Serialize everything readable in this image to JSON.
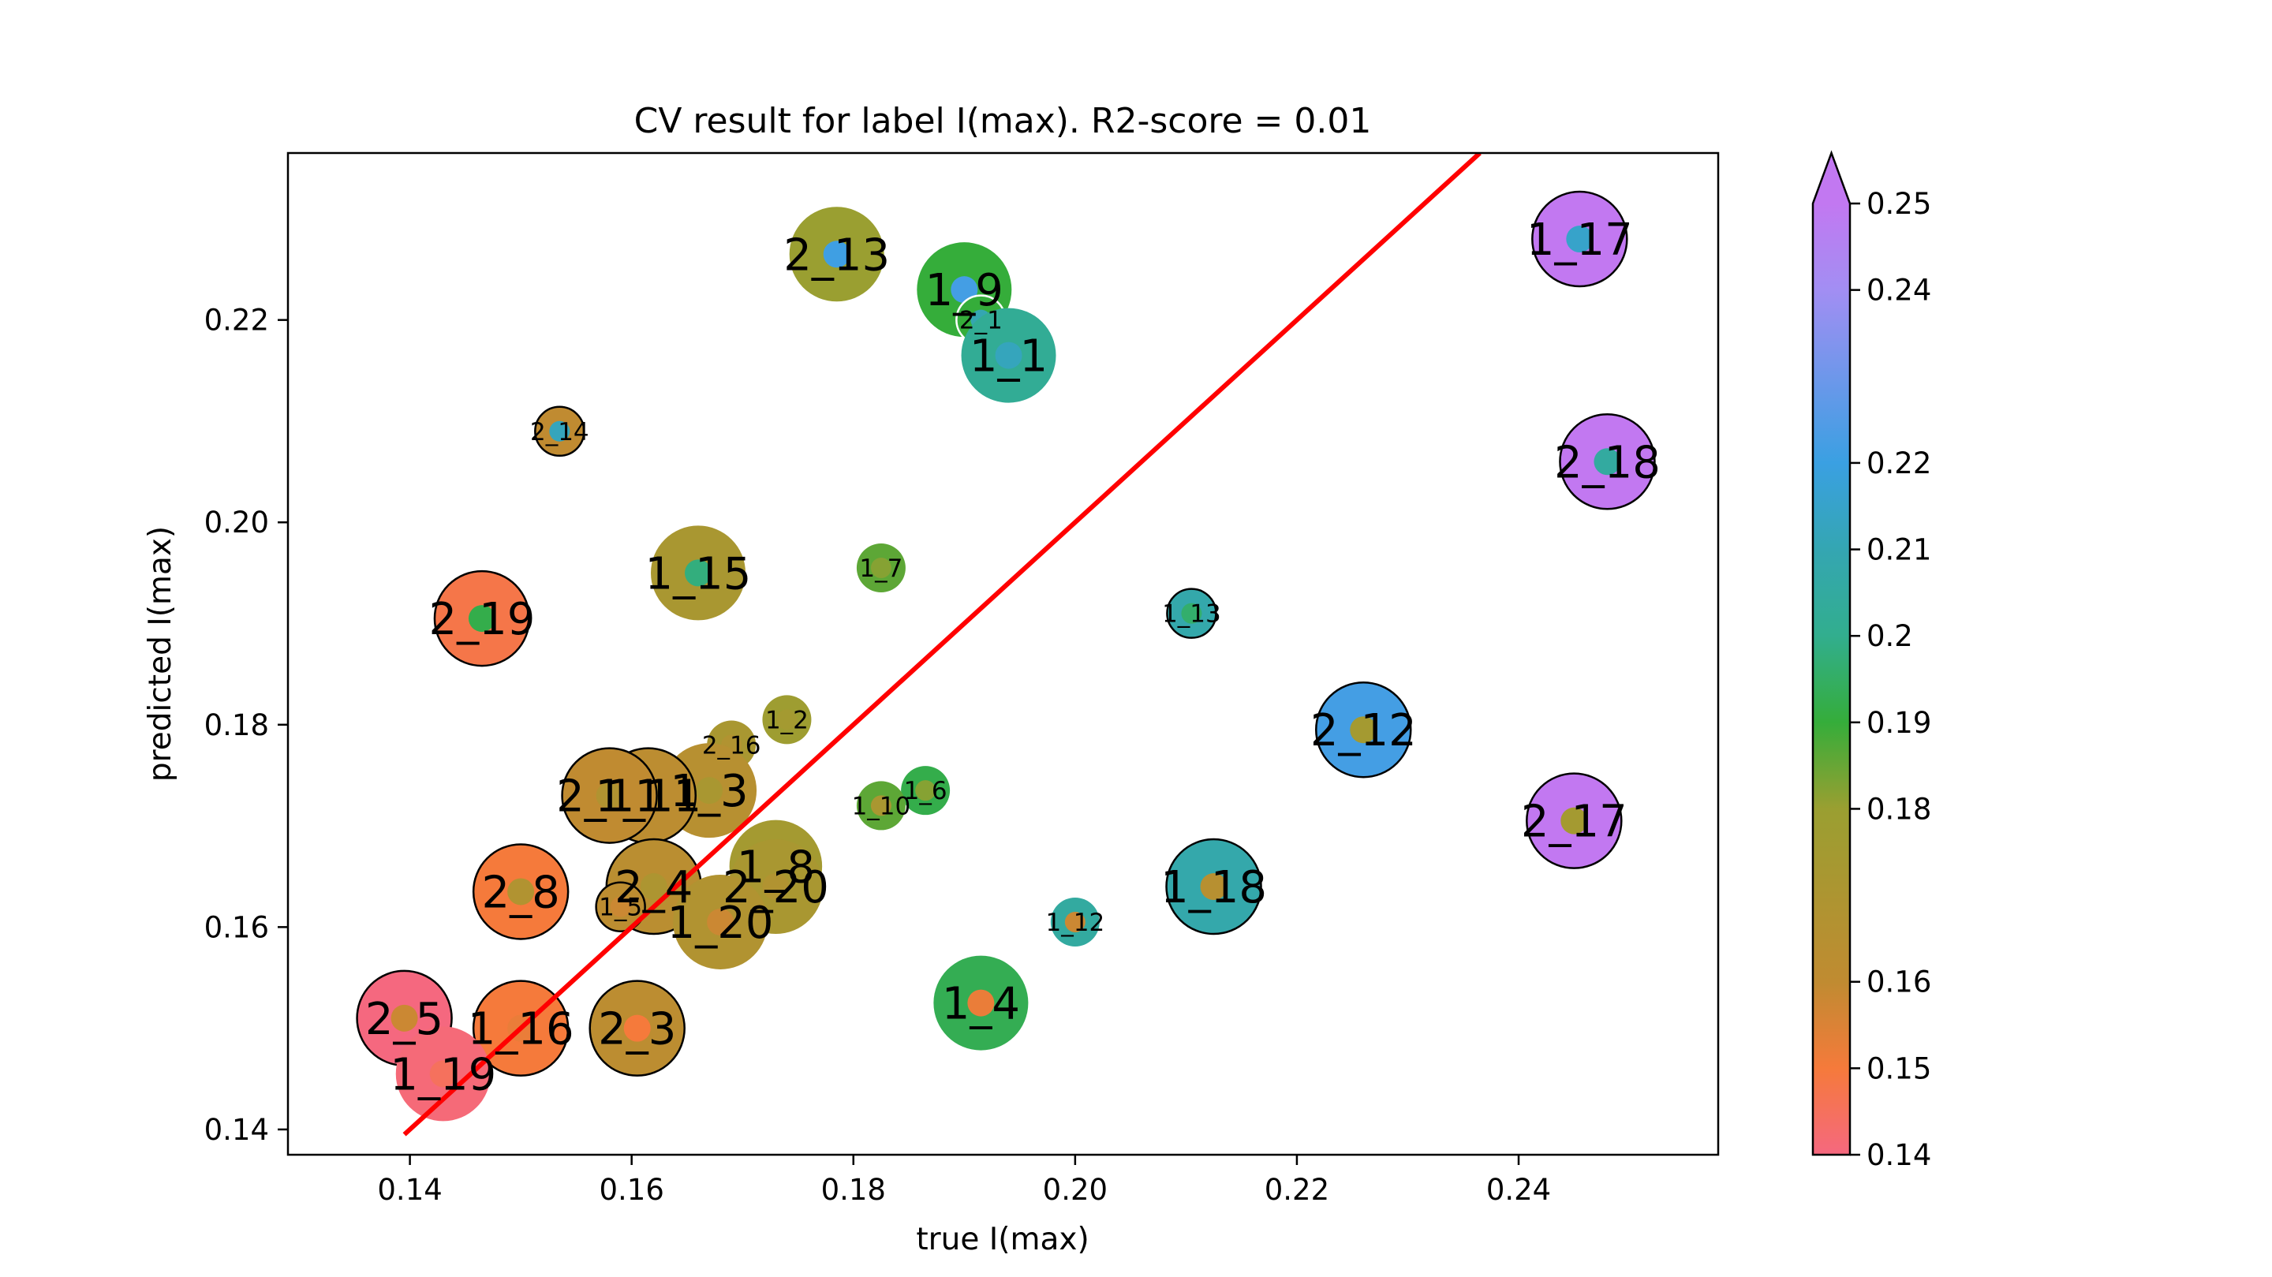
{
  "chart_data": {
    "type": "scatter",
    "title": "CV result for label I(max). R2-score = 0.01",
    "xlabel": "true I(max)",
    "ylabel": "predicted I(max)",
    "xlim": [
      0.129,
      0.258
    ],
    "ylim": [
      0.1375,
      0.2365
    ],
    "x_ticks": [
      0.14,
      0.16,
      0.18,
      0.2,
      0.22,
      0.24
    ],
    "x_tick_labels": [
      "0.14",
      "0.16",
      "0.18",
      "0.20",
      "0.22",
      "0.24"
    ],
    "y_ticks": [
      0.14,
      0.16,
      0.18,
      0.2,
      0.22
    ],
    "y_tick_labels": [
      "0.14",
      "0.16",
      "0.18",
      "0.20",
      "0.22"
    ],
    "grid": false,
    "reference_line": {
      "x": [
        0.1395,
        0.2365
      ],
      "y": [
        0.1395,
        0.2365
      ],
      "color": "#ff0000"
    },
    "colorbar": {
      "min": 0.14,
      "max": 0.25,
      "extend": "max",
      "ticks": [
        0.14,
        0.15,
        0.16,
        0.18,
        0.19,
        0.2,
        0.21,
        0.22,
        0.24,
        0.25
      ],
      "tick_labels": [
        "0.14",
        "0.15",
        "0.16",
        "0.18",
        "0.19",
        "0.2",
        "0.21",
        "0.22",
        "0.24",
        "0.25"
      ],
      "colors": [
        "#f5687f",
        "#f57a3b",
        "#c08b31",
        "#9a9f31",
        "#35ad3a",
        "#32ae8e",
        "#34a6b2",
        "#3aa0e2",
        "#a28ef3",
        "#c278f1"
      ]
    },
    "points": [
      {
        "label": "2_13",
        "x": 0.1785,
        "y": 0.2265,
        "size": "large",
        "fill": 0.18,
        "inner": 0.221,
        "edge": "none"
      },
      {
        "label": "1_9",
        "x": 0.19,
        "y": 0.223,
        "size": "large",
        "fill": 0.19,
        "inner": 0.222,
        "edge": "none"
      },
      {
        "label": "2_1",
        "x": 0.1915,
        "y": 0.22,
        "size": "small",
        "fill": 0.19,
        "inner": 0.21,
        "edge": "white"
      },
      {
        "label": "1_1",
        "x": 0.194,
        "y": 0.2165,
        "size": "large",
        "fill": 0.202,
        "inner": 0.212,
        "edge": "none"
      },
      {
        "label": "1_17",
        "x": 0.2455,
        "y": 0.228,
        "size": "large",
        "fill": 0.25,
        "inner": 0.215,
        "edge": "black"
      },
      {
        "label": "2_14",
        "x": 0.1535,
        "y": 0.209,
        "size": "small",
        "fill": 0.16,
        "inner": 0.212,
        "edge": "black"
      },
      {
        "label": "2_18",
        "x": 0.248,
        "y": 0.206,
        "size": "large",
        "fill": 0.25,
        "inner": 0.205,
        "edge": "black"
      },
      {
        "label": "1_15",
        "x": 0.166,
        "y": 0.195,
        "size": "large",
        "fill": 0.172,
        "inner": 0.198,
        "edge": "none"
      },
      {
        "label": "1_7",
        "x": 0.1825,
        "y": 0.1955,
        "size": "small",
        "fill": 0.186,
        "inner": 0.182,
        "edge": "none"
      },
      {
        "label": "2_19",
        "x": 0.1465,
        "y": 0.1905,
        "size": "large",
        "fill": 0.148,
        "inner": 0.192,
        "edge": "black"
      },
      {
        "label": "1_13",
        "x": 0.2105,
        "y": 0.191,
        "size": "small",
        "fill": 0.208,
        "inner": 0.196,
        "edge": "black"
      },
      {
        "label": "1_2",
        "x": 0.174,
        "y": 0.1805,
        "size": "small",
        "fill": 0.178,
        "inner": 0.175,
        "edge": "none"
      },
      {
        "label": "2_16",
        "x": 0.169,
        "y": 0.178,
        "size": "small",
        "fill": 0.172,
        "inner": 0.168,
        "edge": "none"
      },
      {
        "label": "2_12",
        "x": 0.226,
        "y": 0.1795,
        "size": "large",
        "fill": 0.222,
        "inner": 0.175,
        "edge": "black"
      },
      {
        "label": "1_3",
        "x": 0.167,
        "y": 0.1735,
        "size": "large",
        "fill": 0.165,
        "inner": 0.172,
        "edge": "none"
      },
      {
        "label": "1_11",
        "x": 0.1615,
        "y": 0.173,
        "size": "large",
        "fill": 0.162,
        "inner": 0.17,
        "edge": "black"
      },
      {
        "label": "2_11",
        "x": 0.158,
        "y": 0.173,
        "size": "large",
        "fill": 0.16,
        "inner": 0.168,
        "edge": "black"
      },
      {
        "label": "1_6",
        "x": 0.1865,
        "y": 0.1735,
        "size": "small",
        "fill": 0.192,
        "inner": 0.182,
        "edge": "none"
      },
      {
        "label": "1_10",
        "x": 0.1825,
        "y": 0.172,
        "size": "small",
        "fill": 0.186,
        "inner": 0.172,
        "edge": "none"
      },
      {
        "label": "2_17",
        "x": 0.245,
        "y": 0.1705,
        "size": "large",
        "fill": 0.25,
        "inner": 0.175,
        "edge": "black"
      },
      {
        "label": "1_8",
        "x": 0.173,
        "y": 0.166,
        "size": "large",
        "fill": 0.175,
        "inner": 0.172,
        "edge": "white"
      },
      {
        "label": "2_20",
        "x": 0.173,
        "y": 0.164,
        "size": "large",
        "fill": 0.172,
        "inner": 0.168,
        "edge": "none"
      },
      {
        "label": "2_8",
        "x": 0.15,
        "y": 0.1635,
        "size": "large",
        "fill": 0.15,
        "inner": 0.168,
        "edge": "black"
      },
      {
        "label": "2_4",
        "x": 0.162,
        "y": 0.164,
        "size": "large",
        "fill": 0.163,
        "inner": 0.17,
        "edge": "black"
      },
      {
        "label": "1_5",
        "x": 0.159,
        "y": 0.162,
        "size": "small",
        "fill": 0.162,
        "inner": 0.158,
        "edge": "black"
      },
      {
        "label": "1_20",
        "x": 0.168,
        "y": 0.1605,
        "size": "large",
        "fill": 0.168,
        "inner": 0.158,
        "edge": "none"
      },
      {
        "label": "1_18",
        "x": 0.2125,
        "y": 0.164,
        "size": "large",
        "fill": 0.208,
        "inner": 0.165,
        "edge": "black"
      },
      {
        "label": "1_12",
        "x": 0.2,
        "y": 0.1605,
        "size": "small",
        "fill": 0.205,
        "inner": 0.158,
        "edge": "none"
      },
      {
        "label": "1_4",
        "x": 0.1915,
        "y": 0.1525,
        "size": "large",
        "fill": 0.193,
        "inner": 0.152,
        "edge": "none"
      },
      {
        "label": "2_5",
        "x": 0.1395,
        "y": 0.151,
        "size": "large",
        "fill": 0.14,
        "inner": 0.158,
        "edge": "black"
      },
      {
        "label": "1_16",
        "x": 0.15,
        "y": 0.15,
        "size": "large",
        "fill": 0.15,
        "inner": 0.152,
        "edge": "black"
      },
      {
        "label": "2_3",
        "x": 0.1605,
        "y": 0.15,
        "size": "large",
        "fill": 0.162,
        "inner": 0.15,
        "edge": "black"
      },
      {
        "label": "1_19",
        "x": 0.143,
        "y": 0.1455,
        "size": "large",
        "fill": 0.141,
        "inner": 0.145,
        "edge": "none"
      }
    ]
  }
}
